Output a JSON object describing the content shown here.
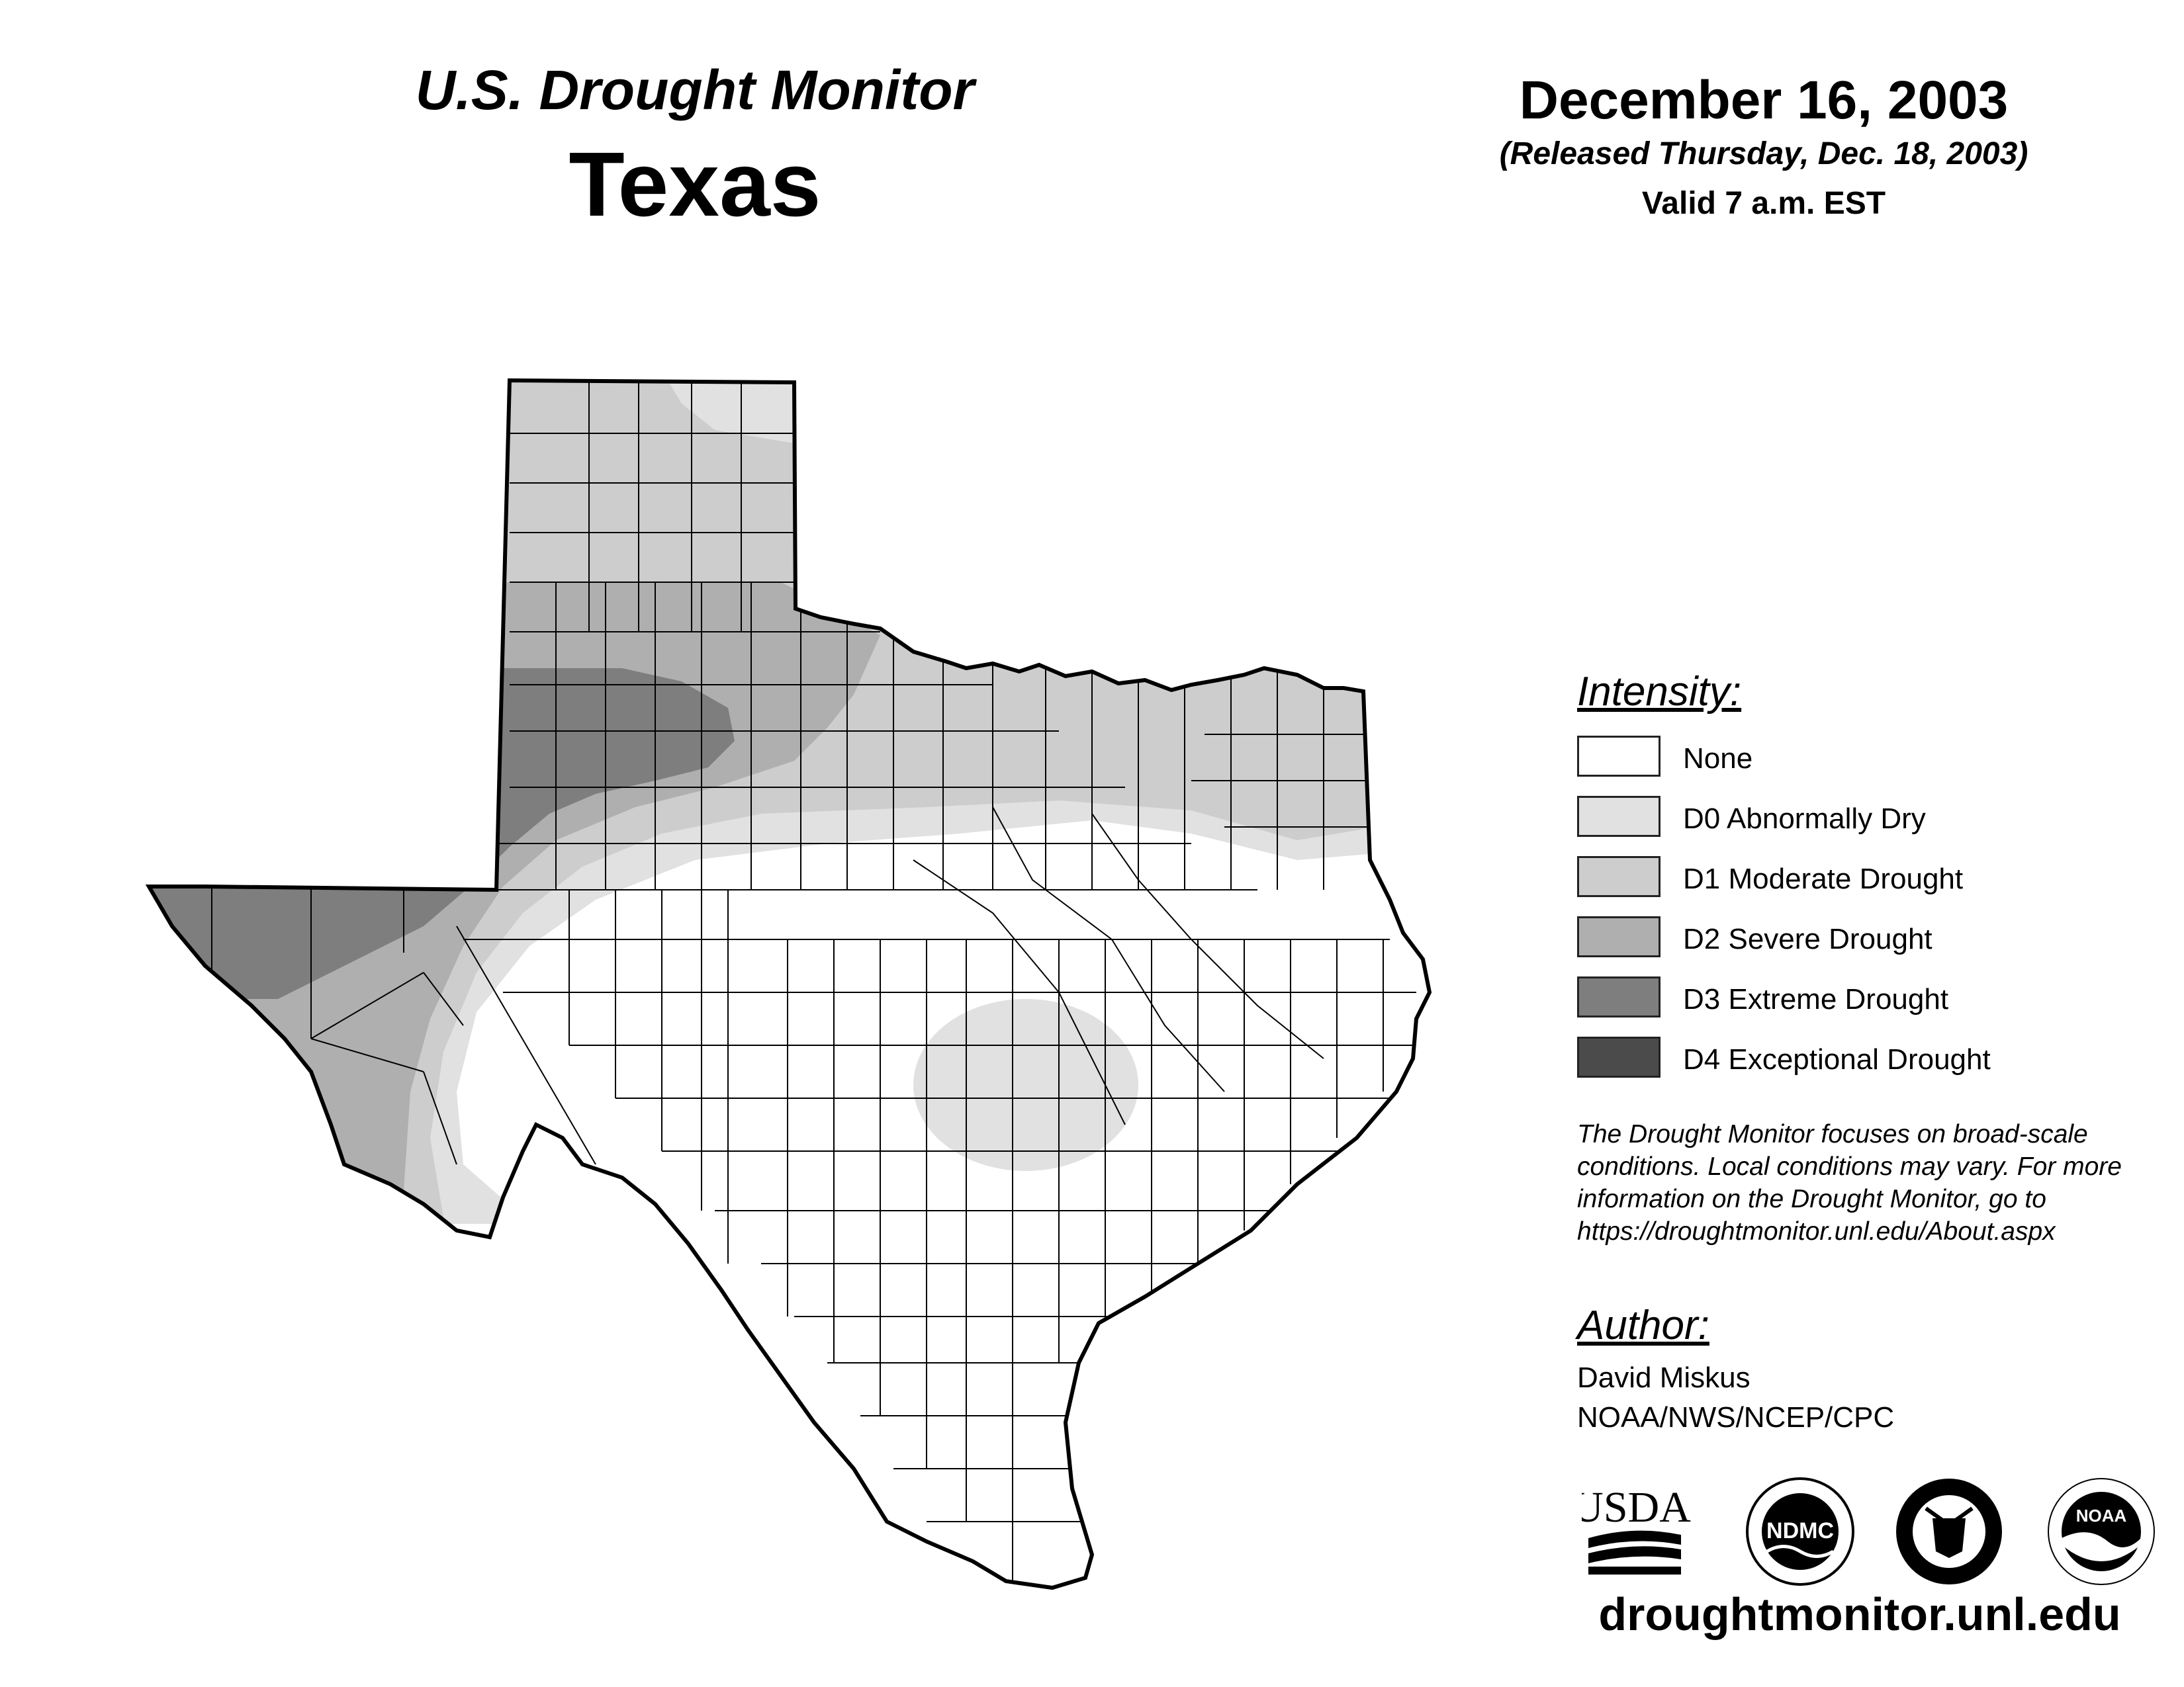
{
  "header": {
    "title": "U.S. Drought Monitor",
    "region": "Texas",
    "date": "December 16, 2003",
    "released": "(Released Thursday, Dec. 18, 2003)",
    "valid": "Valid 7 a.m. EST"
  },
  "legend": {
    "title": "Intensity:",
    "items": [
      {
        "label": "None",
        "color": "#ffffff"
      },
      {
        "label": "D0 Abnormally Dry",
        "color": "#e1e1e1"
      },
      {
        "label": "D1 Moderate Drought",
        "color": "#cdcdcd"
      },
      {
        "label": "D2 Severe Drought",
        "color": "#afafaf"
      },
      {
        "label": "D3 Extreme Drought",
        "color": "#7e7e7e"
      },
      {
        "label": "D4 Exceptional Drought",
        "color": "#4b4b4b"
      }
    ]
  },
  "disclaimer": {
    "lines": [
      "The Drought Monitor focuses on broad-scale",
      "conditions. Local conditions may vary. For more",
      "information on the Drought Monitor, go to",
      "https://droughtmonitor.unl.edu/About.aspx"
    ]
  },
  "author": {
    "title": "Author:",
    "name": "David Miskus",
    "org": "NOAA/NWS/NCEP/CPC"
  },
  "logos": {
    "usda": "USDA",
    "ndmc": "NDMC",
    "noaa": "NOAA"
  },
  "footer": {
    "website": "droughtmonitor.unl.edu"
  }
}
